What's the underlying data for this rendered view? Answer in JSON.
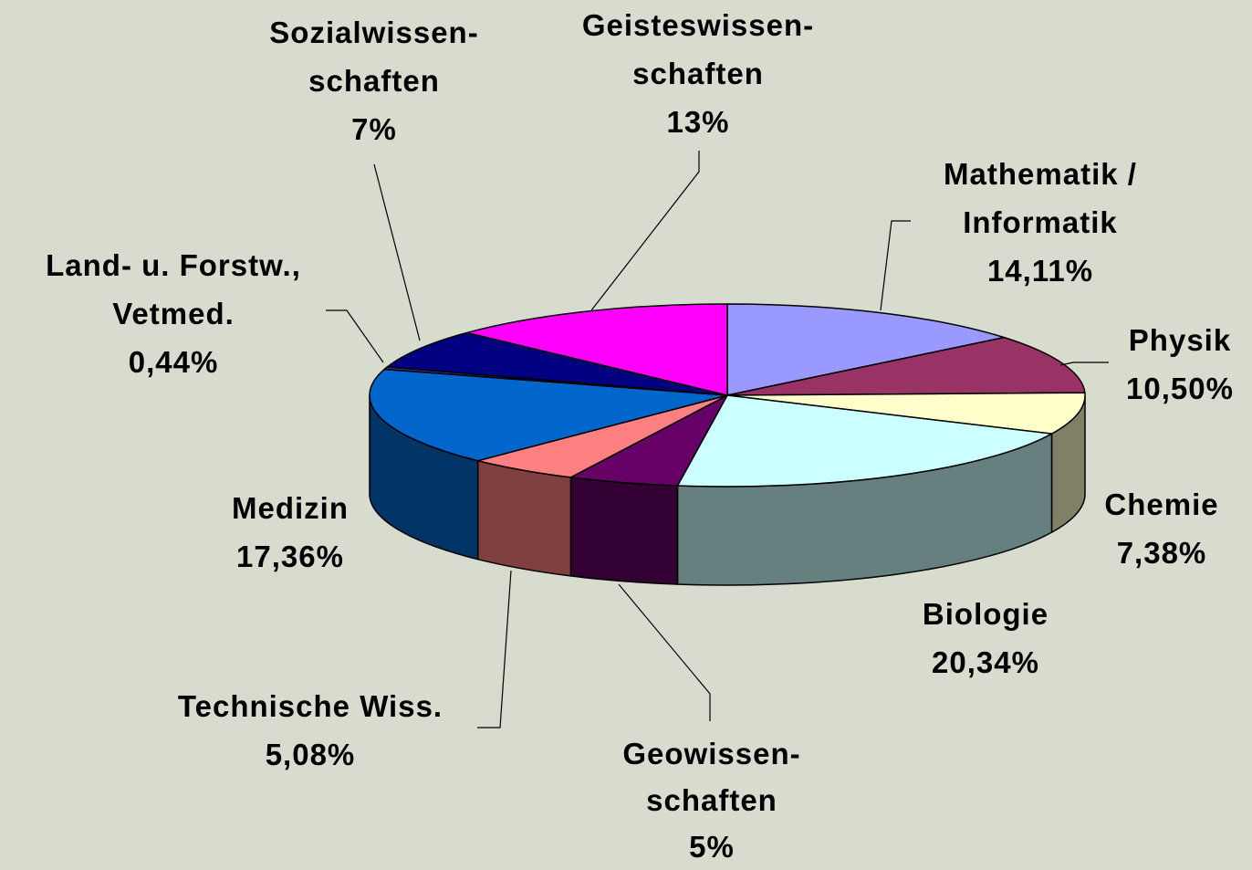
{
  "chart_data": {
    "type": "pie",
    "categories": [
      "Mathematik /\nInformatik",
      "Physik",
      "Chemie",
      "Biologie",
      "Geowissen-\nschaften",
      "Technische Wiss.",
      "Medizin",
      "Land- u. Forstw.,\nVetmed.",
      "Sozialwissen-\nschaften",
      "Geisteswissen-\nschaften"
    ],
    "values": [
      14.11,
      10.5,
      7.38,
      20.34,
      5,
      5.08,
      17.36,
      0.44,
      7,
      13
    ],
    "value_labels": [
      "14,11%",
      "10,50%",
      "7,38%",
      "20,34%",
      "5%",
      "5,08%",
      "17,36%",
      "0,44%",
      "7%",
      "13%"
    ],
    "colors": [
      "#9999ff",
      "#993366",
      "#ffffcc",
      "#ccffff",
      "#660066",
      "#ff8080",
      "#0066cc",
      "#333399",
      "#000080",
      "#ff00ff"
    ]
  }
}
